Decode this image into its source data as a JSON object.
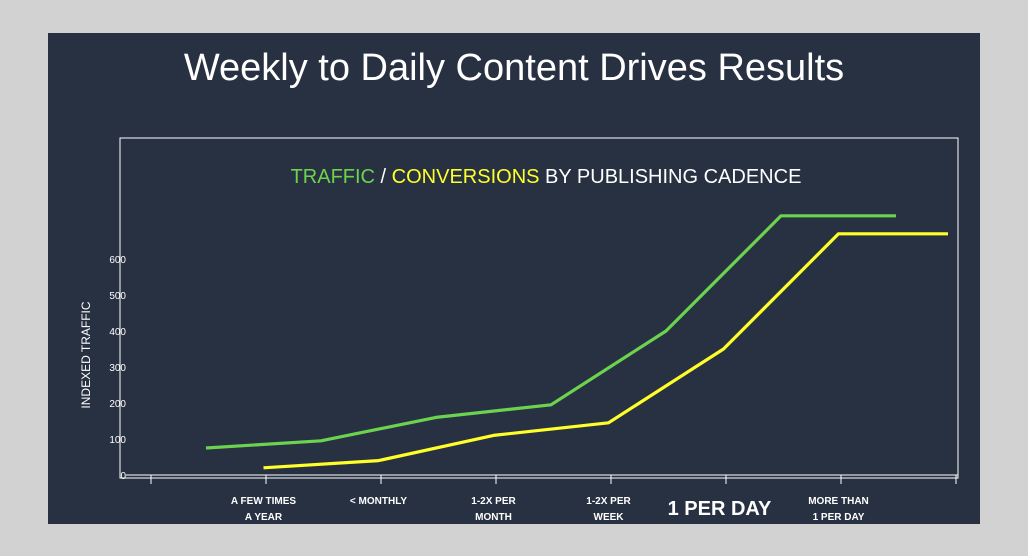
{
  "slide": {
    "title": "Weekly to Daily Content Drives Results"
  },
  "chart_data": {
    "type": "line",
    "title_parts": [
      {
        "text": "TRAFFIC",
        "color": "#6cd34f"
      },
      {
        "text": " / ",
        "color": "#ffffff"
      },
      {
        "text": "CONVERSIONS",
        "color": "#ffff2a"
      },
      {
        "text": " BY PUBLISHING CADENCE",
        "color": "#ffffff"
      }
    ],
    "ylabel": "INDEXED TRAFFIC",
    "ylim": [
      0,
      700
    ],
    "yticks": [
      0,
      100,
      200,
      300,
      400,
      500,
      600
    ],
    "categories": [
      [
        "A FEW TIMES",
        "A YEAR"
      ],
      [
        "< MONTHLY"
      ],
      [
        "1-2X PER",
        "MONTH"
      ],
      [
        "1-2X PER",
        "WEEK"
      ],
      [
        "1 PER DAY"
      ],
      [
        "MORE THAN",
        "1 PER DAY"
      ]
    ],
    "highlight_category": 4,
    "series": [
      {
        "color": "#6cd34f",
        "x": [
          -0.5,
          0.5,
          1.5,
          2.5,
          3.5,
          4.5,
          5.5
        ],
        "values": [
          75,
          95,
          160,
          195,
          400,
          720,
          720
        ]
      },
      {
        "color": "#ffff2a",
        "x": [
          0,
          1,
          2,
          3,
          4,
          5,
          6
        ],
        "values": [
          20,
          40,
          110,
          145,
          350,
          670,
          670
        ]
      }
    ],
    "grid": false,
    "legend": "none"
  }
}
